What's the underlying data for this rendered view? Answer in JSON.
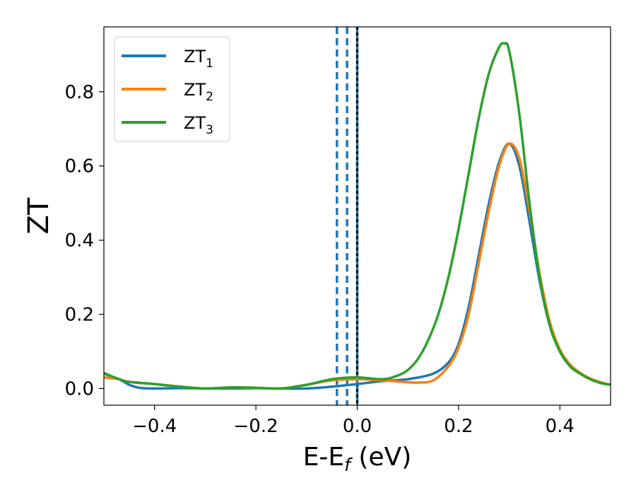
{
  "chart_data": {
    "type": "line",
    "xlabel": {
      "main": "E-E",
      "sub": "f",
      "rest": " (eV)"
    },
    "ylabel": "ZT",
    "xlim": [
      -0.5,
      0.5
    ],
    "ylim": [
      -0.045,
      0.975
    ],
    "xticks": [
      -0.4,
      -0.2,
      0.0,
      0.2,
      0.4
    ],
    "xtick_labels": [
      "−0.4",
      "−0.2",
      "0.0",
      "0.2",
      "0.4"
    ],
    "yticks": [
      0.0,
      0.2,
      0.4,
      0.6,
      0.8
    ],
    "ytick_labels": [
      "0.0",
      "0.2",
      "0.4",
      "0.6",
      "0.8"
    ],
    "grid": false,
    "legend_position": "top-left",
    "series": [
      {
        "name": "ZT",
        "sub": "1",
        "color": "#1f77b4",
        "x": [
          -0.5,
          -0.47,
          -0.45,
          -0.43,
          -0.4,
          -0.35,
          -0.3,
          -0.25,
          -0.2,
          -0.15,
          -0.1,
          -0.05,
          0.0,
          0.05,
          0.1,
          0.15,
          0.18,
          0.2,
          0.22,
          0.24,
          0.26,
          0.28,
          0.3,
          0.32,
          0.34,
          0.36,
          0.38,
          0.4,
          0.42,
          0.44,
          0.46,
          0.48,
          0.5
        ],
        "y": [
          0.04,
          0.025,
          0.01,
          0.002,
          0.0,
          0.001,
          0.0,
          0.0,
          0.001,
          0.0,
          0.0,
          0.005,
          0.012,
          0.02,
          0.025,
          0.04,
          0.07,
          0.12,
          0.22,
          0.36,
          0.5,
          0.61,
          0.66,
          0.6,
          0.45,
          0.29,
          0.17,
          0.1,
          0.06,
          0.04,
          0.025,
          0.015,
          0.01
        ]
      },
      {
        "name": "ZT",
        "sub": "2",
        "color": "#ff7f0e",
        "x": [
          -0.5,
          -0.47,
          -0.45,
          -0.4,
          -0.35,
          -0.3,
          -0.25,
          -0.2,
          -0.15,
          -0.1,
          -0.05,
          0.0,
          0.05,
          0.1,
          0.12,
          0.15,
          0.18,
          0.2,
          0.22,
          0.24,
          0.26,
          0.28,
          0.3,
          0.32,
          0.34,
          0.36,
          0.38,
          0.4,
          0.42,
          0.44,
          0.46,
          0.48,
          0.5
        ],
        "y": [
          0.03,
          0.025,
          0.018,
          0.012,
          0.005,
          0.0,
          0.003,
          0.002,
          0.0,
          0.01,
          0.022,
          0.025,
          0.022,
          0.017,
          0.016,
          0.022,
          0.06,
          0.11,
          0.2,
          0.34,
          0.48,
          0.6,
          0.66,
          0.62,
          0.48,
          0.31,
          0.18,
          0.105,
          0.065,
          0.042,
          0.027,
          0.017,
          0.01
        ]
      },
      {
        "name": "ZT",
        "sub": "3",
        "color": "#2ca02c",
        "x": [
          -0.5,
          -0.47,
          -0.45,
          -0.4,
          -0.35,
          -0.3,
          -0.25,
          -0.2,
          -0.15,
          -0.1,
          -0.05,
          0.0,
          0.05,
          0.08,
          0.1,
          0.12,
          0.14,
          0.16,
          0.18,
          0.2,
          0.22,
          0.24,
          0.26,
          0.28,
          0.29,
          0.3,
          0.32,
          0.34,
          0.36,
          0.38,
          0.4,
          0.42,
          0.44,
          0.46,
          0.48,
          0.5
        ],
        "y": [
          0.042,
          0.025,
          0.018,
          0.012,
          0.005,
          0.0,
          0.003,
          0.002,
          0.0,
          0.01,
          0.025,
          0.03,
          0.025,
          0.035,
          0.05,
          0.08,
          0.13,
          0.2,
          0.3,
          0.43,
          0.58,
          0.73,
          0.85,
          0.92,
          0.93,
          0.91,
          0.74,
          0.5,
          0.3,
          0.17,
          0.1,
          0.06,
          0.04,
          0.025,
          0.015,
          0.01
        ]
      }
    ],
    "vertical_lines": [
      {
        "x": -0.04,
        "color": "#1f77b4",
        "style": "dashed"
      },
      {
        "x": -0.02,
        "color": "#1f77b4",
        "style": "dashed"
      },
      {
        "x": 0.0,
        "color": "#1f77b4",
        "style": "solid"
      },
      {
        "x": 0.0,
        "color": "#000000",
        "style": "dotted"
      }
    ]
  }
}
